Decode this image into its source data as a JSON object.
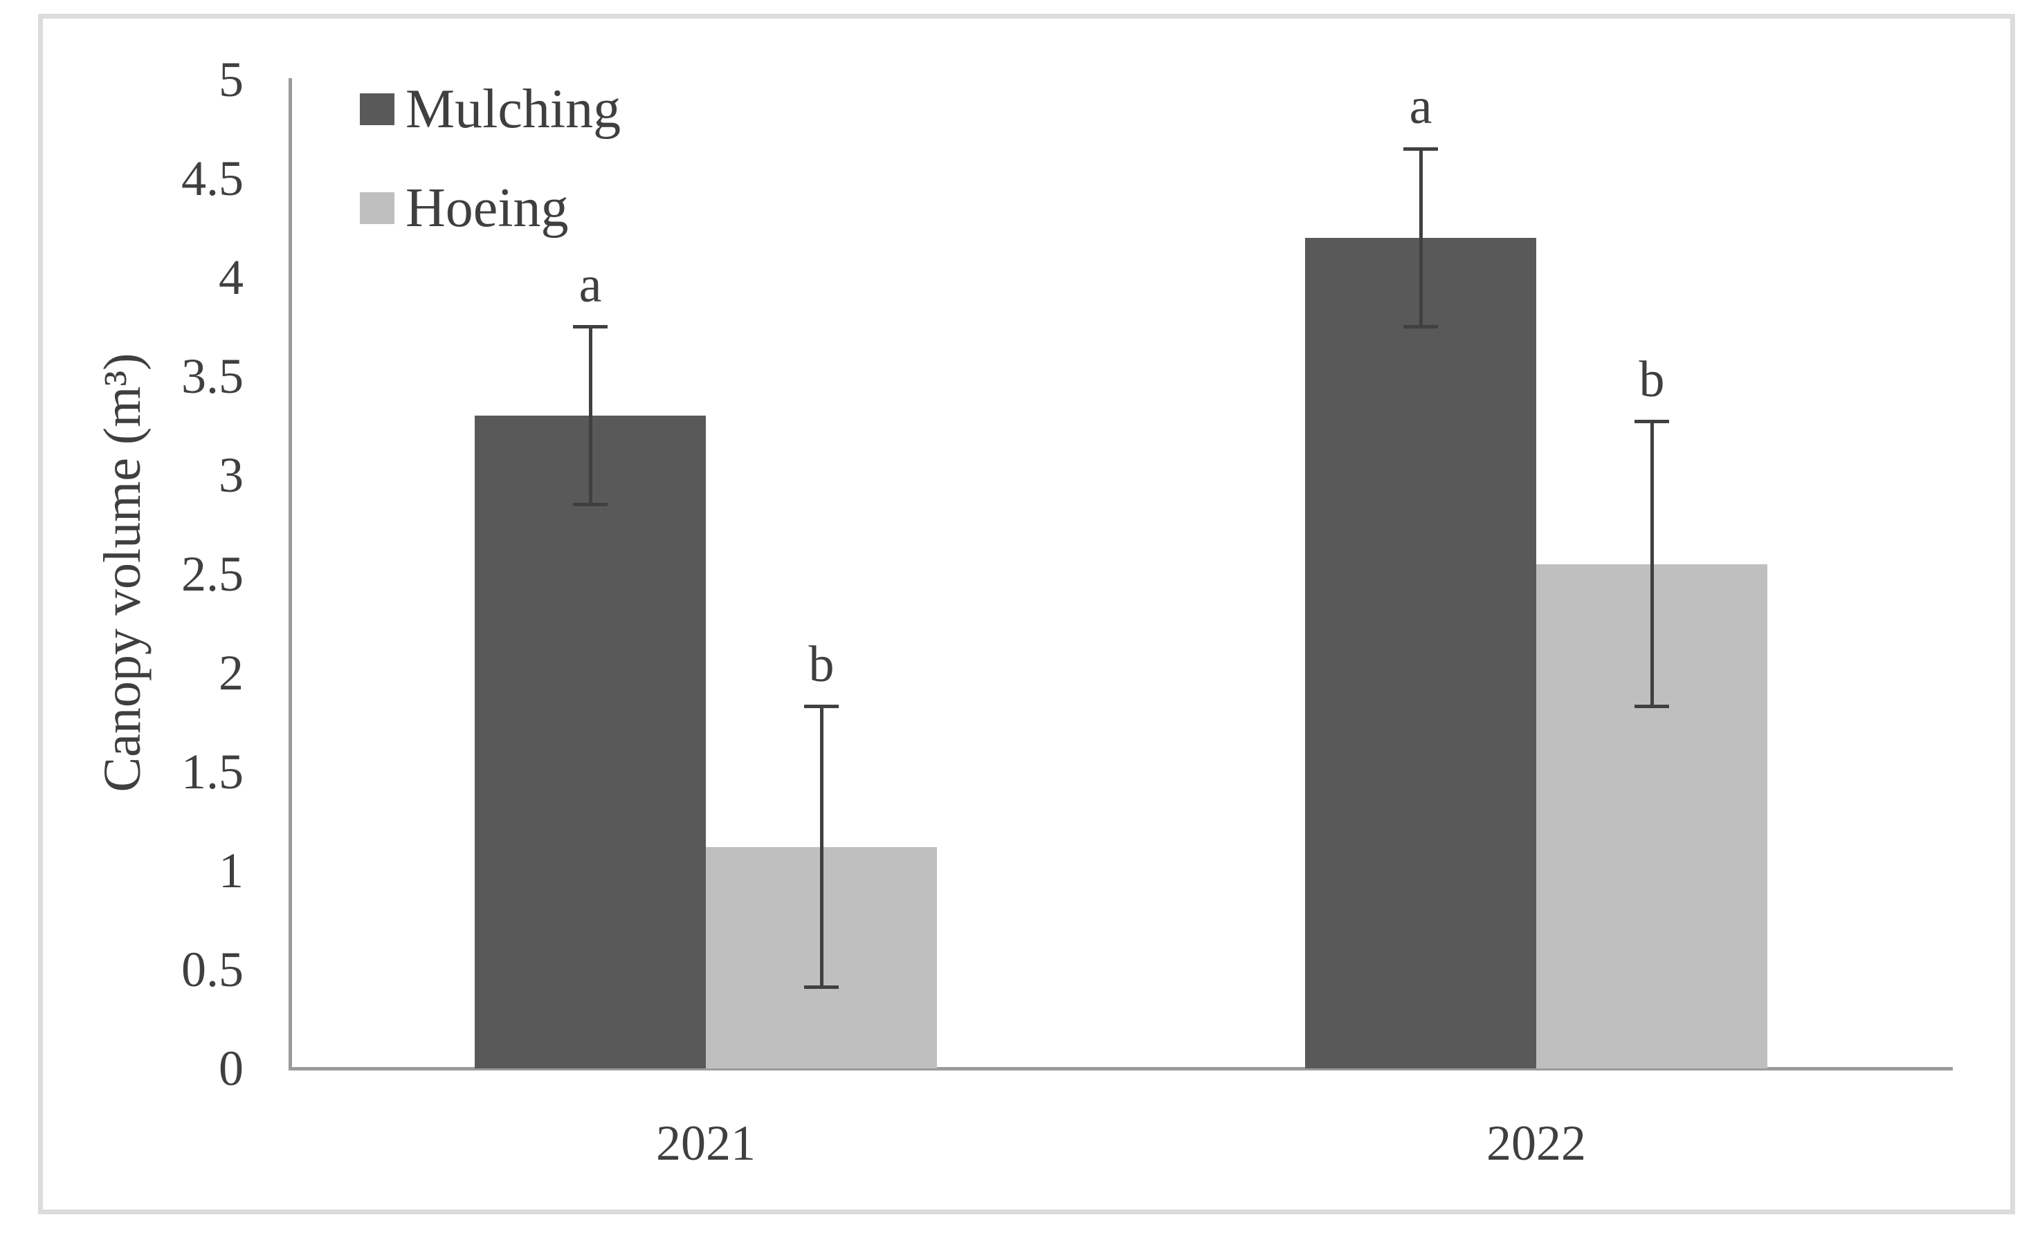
{
  "colors": {
    "axis": "#9b9b9b",
    "error_bar": "#404040",
    "text": "#3f3f3f",
    "figure_border": "#dcdcdc",
    "background": "#ffffff"
  },
  "chart_data": {
    "type": "bar",
    "title": "",
    "categories": [
      "2021",
      "2022"
    ],
    "series": [
      {
        "name": "Mulching",
        "color": "#595959",
        "values": [
          3.3,
          4.2
        ],
        "errors": [
          0.45,
          0.45
        ],
        "sig_letters": [
          "a",
          "a"
        ]
      },
      {
        "name": "Hoeing",
        "color": "#bfbfbf",
        "values": [
          1.12,
          2.55
        ],
        "errors": [
          0.71,
          0.72
        ],
        "sig_letters": [
          "b",
          "b"
        ]
      }
    ],
    "xlabel": "",
    "ylabel": "Canopy volume (m³)",
    "yticks": [
      0,
      0.5,
      1,
      1.5,
      2,
      2.5,
      3,
      3.5,
      4,
      4.5,
      5
    ],
    "ylim": [
      0,
      5
    ],
    "grid": false,
    "legend_position": "top-left",
    "error_bars": true
  }
}
